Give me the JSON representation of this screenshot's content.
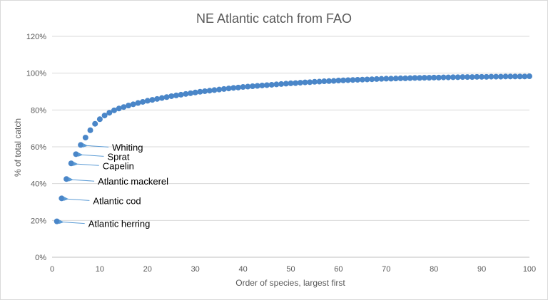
{
  "chart_data": {
    "type": "scatter",
    "title": "NE Atlantic catch from FAO",
    "xlabel": "Order of species, largest first",
    "ylabel": "% of total catch",
    "xlim": [
      0,
      100
    ],
    "ylim": [
      0,
      120
    ],
    "x_ticks": [
      0,
      10,
      20,
      30,
      40,
      50,
      60,
      70,
      80,
      90,
      100
    ],
    "y_ticks": [
      0,
      20,
      40,
      60,
      80,
      100,
      120
    ],
    "y_tick_format": "%",
    "grid": "horizontal",
    "legend": "none",
    "colors": {
      "marker": "#4a86c8",
      "gridline": "#d9d9d9",
      "arrow": "#5b9bd5"
    },
    "series": [
      {
        "x": [
          1,
          2,
          3,
          4,
          5,
          6,
          7,
          8,
          9,
          10,
          11,
          12,
          13,
          14,
          15,
          16,
          17,
          18,
          19,
          20,
          21,
          22,
          23,
          24,
          25,
          26,
          27,
          28,
          29,
          30,
          31,
          32,
          33,
          34,
          35,
          36,
          37,
          38,
          39,
          40,
          41,
          42,
          43,
          44,
          45,
          46,
          47,
          48,
          49,
          50,
          51,
          52,
          53,
          54,
          55,
          56,
          57,
          58,
          59,
          60,
          61,
          62,
          63,
          64,
          65,
          66,
          67,
          68,
          69,
          70,
          71,
          72,
          73,
          74,
          75,
          76,
          77,
          78,
          79,
          80,
          81,
          82,
          83,
          84,
          85,
          86,
          87,
          88,
          89,
          90,
          91,
          92,
          93,
          94,
          95,
          96,
          97,
          98,
          99,
          100
        ],
        "y": [
          19.5,
          32,
          42.5,
          51,
          56,
          61,
          65,
          69,
          72.5,
          75,
          77,
          78.5,
          79.8,
          80.8,
          81.6,
          82.4,
          83.1,
          83.8,
          84.4,
          85,
          85.5,
          86,
          86.5,
          87,
          87.5,
          87.9,
          88.3,
          88.7,
          89.1,
          89.5,
          89.9,
          90.2,
          90.5,
          90.8,
          91.1,
          91.4,
          91.7,
          92,
          92.2,
          92.5,
          92.7,
          92.9,
          93.1,
          93.3,
          93.5,
          93.7,
          93.9,
          94.1,
          94.3,
          94.5,
          94.6,
          94.8,
          95,
          95.1,
          95.3,
          95.4,
          95.6,
          95.7,
          95.8,
          96,
          96.1,
          96.2,
          96.3,
          96.4,
          96.5,
          96.6,
          96.7,
          96.8,
          96.9,
          97,
          97,
          97.1,
          97.2,
          97.2,
          97.3,
          97.4,
          97.4,
          97.5,
          97.5,
          97.6,
          97.6,
          97.7,
          97.7,
          97.8,
          97.8,
          97.9,
          97.9,
          97.9,
          98,
          98,
          98,
          98.1,
          98.1,
          98.1,
          98.2,
          98.2,
          98.2,
          98.2,
          98.2,
          98.3
        ]
      }
    ],
    "annotations": [
      {
        "text": "Atlantic herring",
        "x": 1,
        "y": 19.5
      },
      {
        "text": "Atlantic cod",
        "x": 2,
        "y": 32
      },
      {
        "text": "Atlantic mackerel",
        "x": 3,
        "y": 42.5
      },
      {
        "text": "Capelin",
        "x": 4,
        "y": 51
      },
      {
        "text": "Sprat",
        "x": 5,
        "y": 56
      },
      {
        "text": "Whiting",
        "x": 6,
        "y": 61
      }
    ]
  }
}
